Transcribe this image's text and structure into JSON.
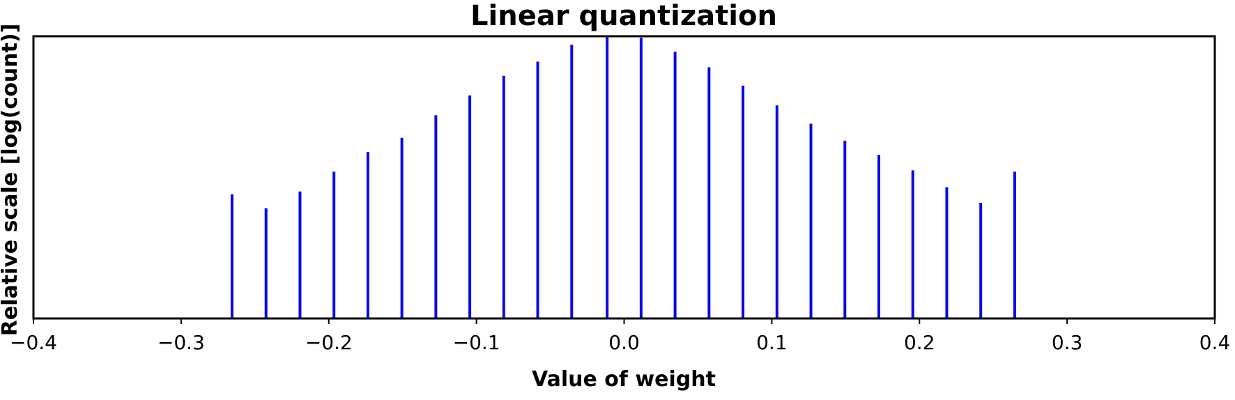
{
  "chart_data": {
    "type": "bar",
    "title": "Linear quantization",
    "xlabel": "Value of weight",
    "ylabel": "Relative scale [log(count)]",
    "xlim": [
      -0.4,
      0.4
    ],
    "ylim": [
      0,
      1
    ],
    "xticks": [
      -0.4,
      -0.3,
      -0.2,
      -0.1,
      0.0,
      0.1,
      0.2,
      0.3,
      0.4
    ],
    "xtick_labels": [
      "−0.4",
      "−0.3",
      "−0.2",
      "−0.1",
      "0.0",
      "0.1",
      "0.2",
      "0.3",
      "0.4"
    ],
    "grid": false,
    "bar_color": "#0a0ae8",
    "x": [
      -0.2655,
      -0.2425,
      -0.2195,
      -0.1965,
      -0.1735,
      -0.1505,
      -0.1275,
      -0.1045,
      -0.0815,
      -0.0585,
      -0.0355,
      -0.0115,
      0.0115,
      0.0345,
      0.0575,
      0.0805,
      0.1035,
      0.1265,
      0.1495,
      0.1725,
      0.1955,
      0.2185,
      0.2415,
      0.2645
    ],
    "values": [
      0.44,
      0.39,
      0.45,
      0.52,
      0.59,
      0.64,
      0.72,
      0.79,
      0.86,
      0.91,
      0.97,
      1.0,
      0.995,
      0.945,
      0.89,
      0.825,
      0.755,
      0.69,
      0.63,
      0.58,
      0.525,
      0.465,
      0.41,
      0.52
    ]
  }
}
